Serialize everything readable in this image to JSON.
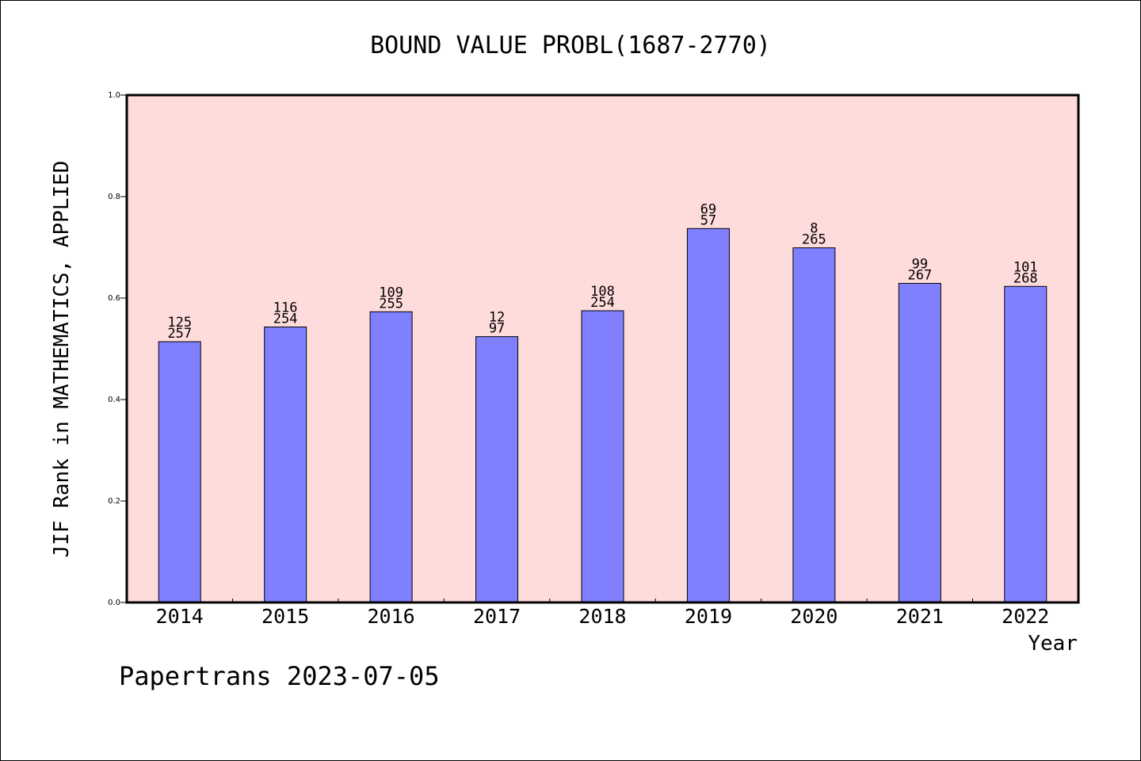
{
  "chart_data": {
    "type": "bar",
    "title": "BOUND VALUE PROBL(1687-2770)",
    "xlabel": "Year",
    "ylabel": "JIF Rank in MATHEMATICS, APPLIED",
    "ylim": [
      0,
      1.0
    ],
    "yticks": [
      "0.0",
      "0.2",
      "0.4",
      "0.6",
      "0.8",
      "1.0"
    ],
    "categories": [
      "2014",
      "2015",
      "2016",
      "2017",
      "2018",
      "2019",
      "2020",
      "2021",
      "2022"
    ],
    "values": [
      0.514,
      0.543,
      0.573,
      0.524,
      0.575,
      0.737,
      0.699,
      0.629,
      0.623
    ],
    "rank_labels": [
      "125",
      "116",
      "109",
      "12",
      "108",
      "69",
      "8",
      "99",
      "101"
    ],
    "total_labels": [
      "257",
      "254",
      "255",
      "97",
      "254",
      "57",
      "265",
      "267",
      "268"
    ],
    "grid": false,
    "colors": {
      "bar": "#8080ff",
      "plot_background": "#ffdcdc",
      "axis": "#000000"
    }
  },
  "footer": {
    "credit": "Papertrans 2023-07-05"
  }
}
